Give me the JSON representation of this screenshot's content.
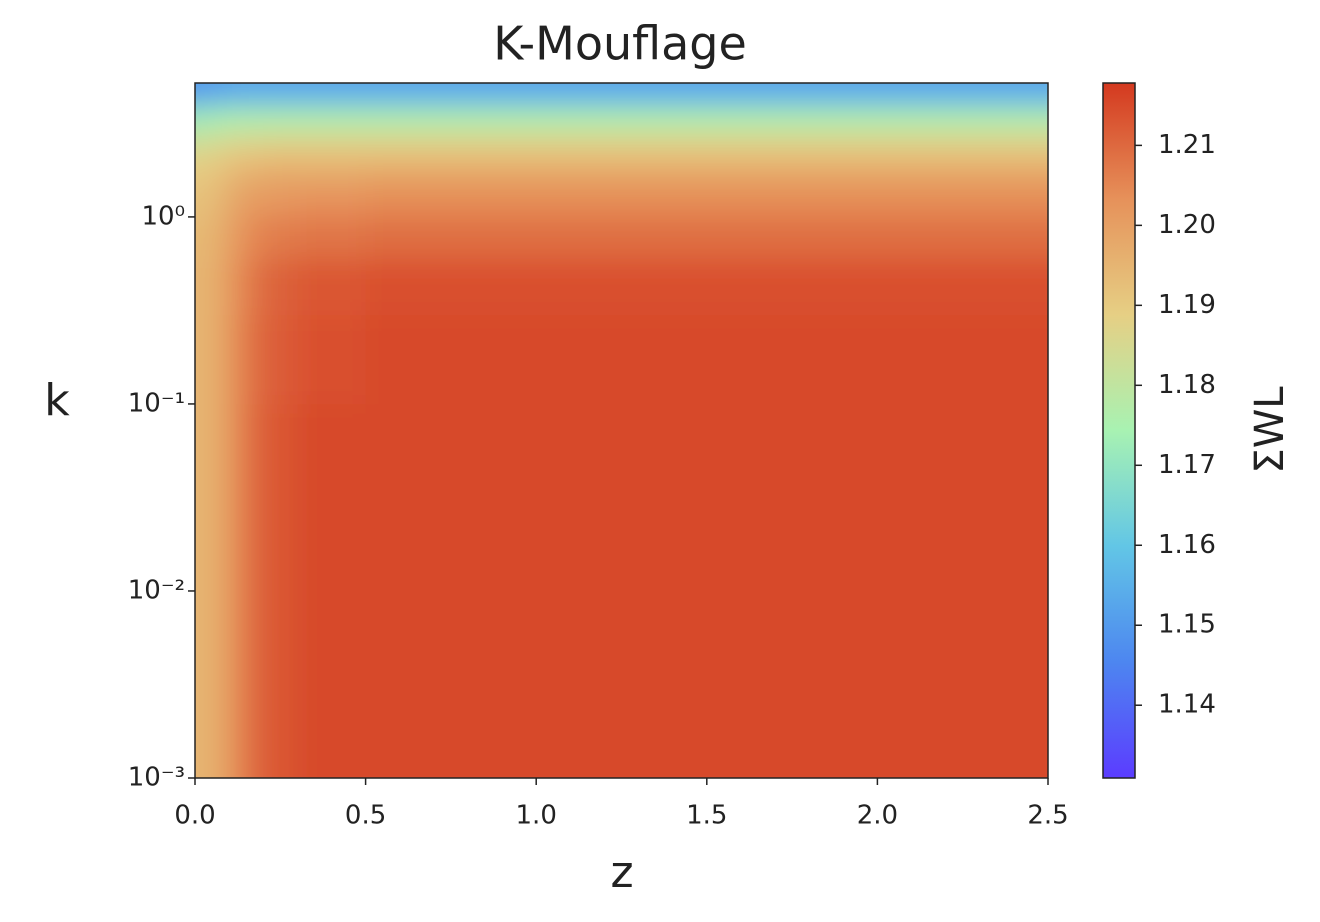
{
  "chart_data": {
    "type": "heatmap",
    "title": "K-Mouflage",
    "xlabel": "z",
    "ylabel": "k",
    "colorbar_label": "ΣWL",
    "x_edges": [
      0,
      0.05,
      0.1,
      0.15,
      0.2,
      0.3,
      0.5,
      1.0,
      1.5,
      2.0,
      2.5
    ],
    "y_edges": [
      0.001,
      0.01,
      0.1,
      0.3,
      0.6,
      1,
      1.5,
      2,
      2.5,
      3,
      4,
      5.2
    ],
    "z": [
      [
        1.195,
        1.198,
        1.205,
        1.21,
        1.213,
        1.215,
        1.215,
        1.215,
        1.215,
        1.215
      ],
      [
        1.195,
        1.198,
        1.205,
        1.21,
        1.213,
        1.215,
        1.215,
        1.215,
        1.215,
        1.215
      ],
      [
        1.195,
        1.198,
        1.205,
        1.209,
        1.212,
        1.214,
        1.215,
        1.215,
        1.215,
        1.215
      ],
      [
        1.195,
        1.198,
        1.204,
        1.208,
        1.211,
        1.213,
        1.214,
        1.214,
        1.214,
        1.214
      ],
      [
        1.194,
        1.197,
        1.202,
        1.205,
        1.207,
        1.208,
        1.209,
        1.209,
        1.209,
        1.209
      ],
      [
        1.192,
        1.195,
        1.199,
        1.201,
        1.202,
        1.203,
        1.204,
        1.204,
        1.204,
        1.204
      ],
      [
        1.19,
        1.192,
        1.195,
        1.196,
        1.197,
        1.197,
        1.198,
        1.198,
        1.198,
        1.198
      ],
      [
        1.186,
        1.188,
        1.19,
        1.19,
        1.191,
        1.191,
        1.191,
        1.191,
        1.191,
        1.191
      ],
      [
        1.18,
        1.182,
        1.183,
        1.183,
        1.184,
        1.184,
        1.184,
        1.184,
        1.184,
        1.184
      ],
      [
        1.172,
        1.174,
        1.175,
        1.175,
        1.175,
        1.175,
        1.175,
        1.175,
        1.175,
        1.175
      ],
      [
        1.15,
        1.152,
        1.153,
        1.153,
        1.153,
        1.153,
        1.153,
        1.153,
        1.153,
        1.153
      ]
    ],
    "xlim": [
      0,
      2.5
    ],
    "xticks": [
      {
        "value": 0,
        "label": "0.0"
      },
      0.5,
      {
        "value": 1,
        "label": "1.0"
      },
      1.5,
      {
        "value": 2,
        "label": "2.0"
      },
      2.5
    ],
    "ylim": [
      0.001,
      5.2
    ],
    "yscale": "log",
    "yticks": [
      {
        "value": 0.001,
        "label": "10⁻³"
      },
      {
        "value": 0.01,
        "label": "10⁻²"
      },
      {
        "value": 0.1,
        "label": "10⁻¹"
      },
      {
        "value": 1,
        "label": "10⁰"
      }
    ],
    "clim": [
      1.1309,
      1.2178
    ],
    "cticks": [
      1.14,
      1.15,
      1.16,
      1.17,
      1.18,
      1.19,
      {
        "value": 1.2,
        "label": "1.20"
      },
      1.21
    ],
    "colormap": [
      "#5b3cff",
      "#4d86f0",
      "#62c6e6",
      "#a8f2b2",
      "#e6cf84",
      "#e6915a",
      "#d4391f"
    ]
  }
}
